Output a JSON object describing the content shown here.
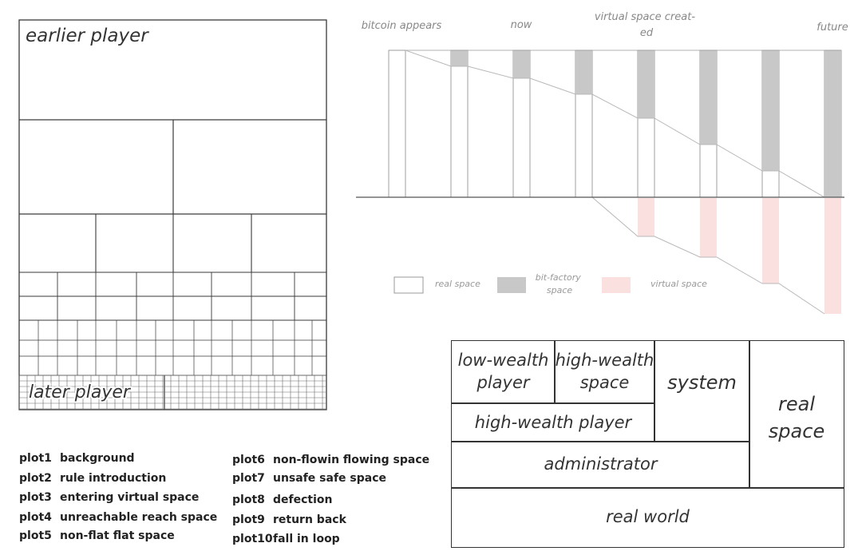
{
  "grid": {
    "top_label": "earlier player",
    "bottom_label": "later player"
  },
  "timeline": {
    "labels": {
      "bitcoin": "bitcoin appears",
      "now": "now",
      "virtual": "virtual space creat-\ned",
      "future": "future"
    },
    "legend": {
      "real": "real space",
      "bitfactory": "bit-factory\nspace",
      "virtual": "virtual space"
    },
    "colors": {
      "real": "#ffffff",
      "bitfactory": "#c8c8c8",
      "virtual": "#fbe0e0",
      "line": "#b8b8b8"
    }
  },
  "structure": {
    "low_wealth_player": "low-wealth\nplayer",
    "high_wealth_space": "high-wealth\nspace",
    "system": "system",
    "real_space": "real\nspace",
    "high_wealth_player": "high-wealth player",
    "administrator": "administrator",
    "real_world": "real world"
  },
  "plots_left": [
    {
      "id": "plot1",
      "label": "background"
    },
    {
      "id": "plot2",
      "label": "rule introduction"
    },
    {
      "id": "plot3",
      "label": "entering virtual space"
    },
    {
      "id": "plot4",
      "label": "unreachable reach space"
    },
    {
      "id": "plot5",
      "label": "non-flat flat space"
    }
  ],
  "plots_right": [
    {
      "id": "plot6",
      "label": "non-flowin flowing space"
    },
    {
      "id": "plot7",
      "label": "unsafe safe space"
    },
    {
      "id": "plot8",
      "label": "defection"
    },
    {
      "id": "plot9",
      "label": "return back"
    },
    {
      "id": "plot10",
      "label": "fall in loop"
    }
  ]
}
